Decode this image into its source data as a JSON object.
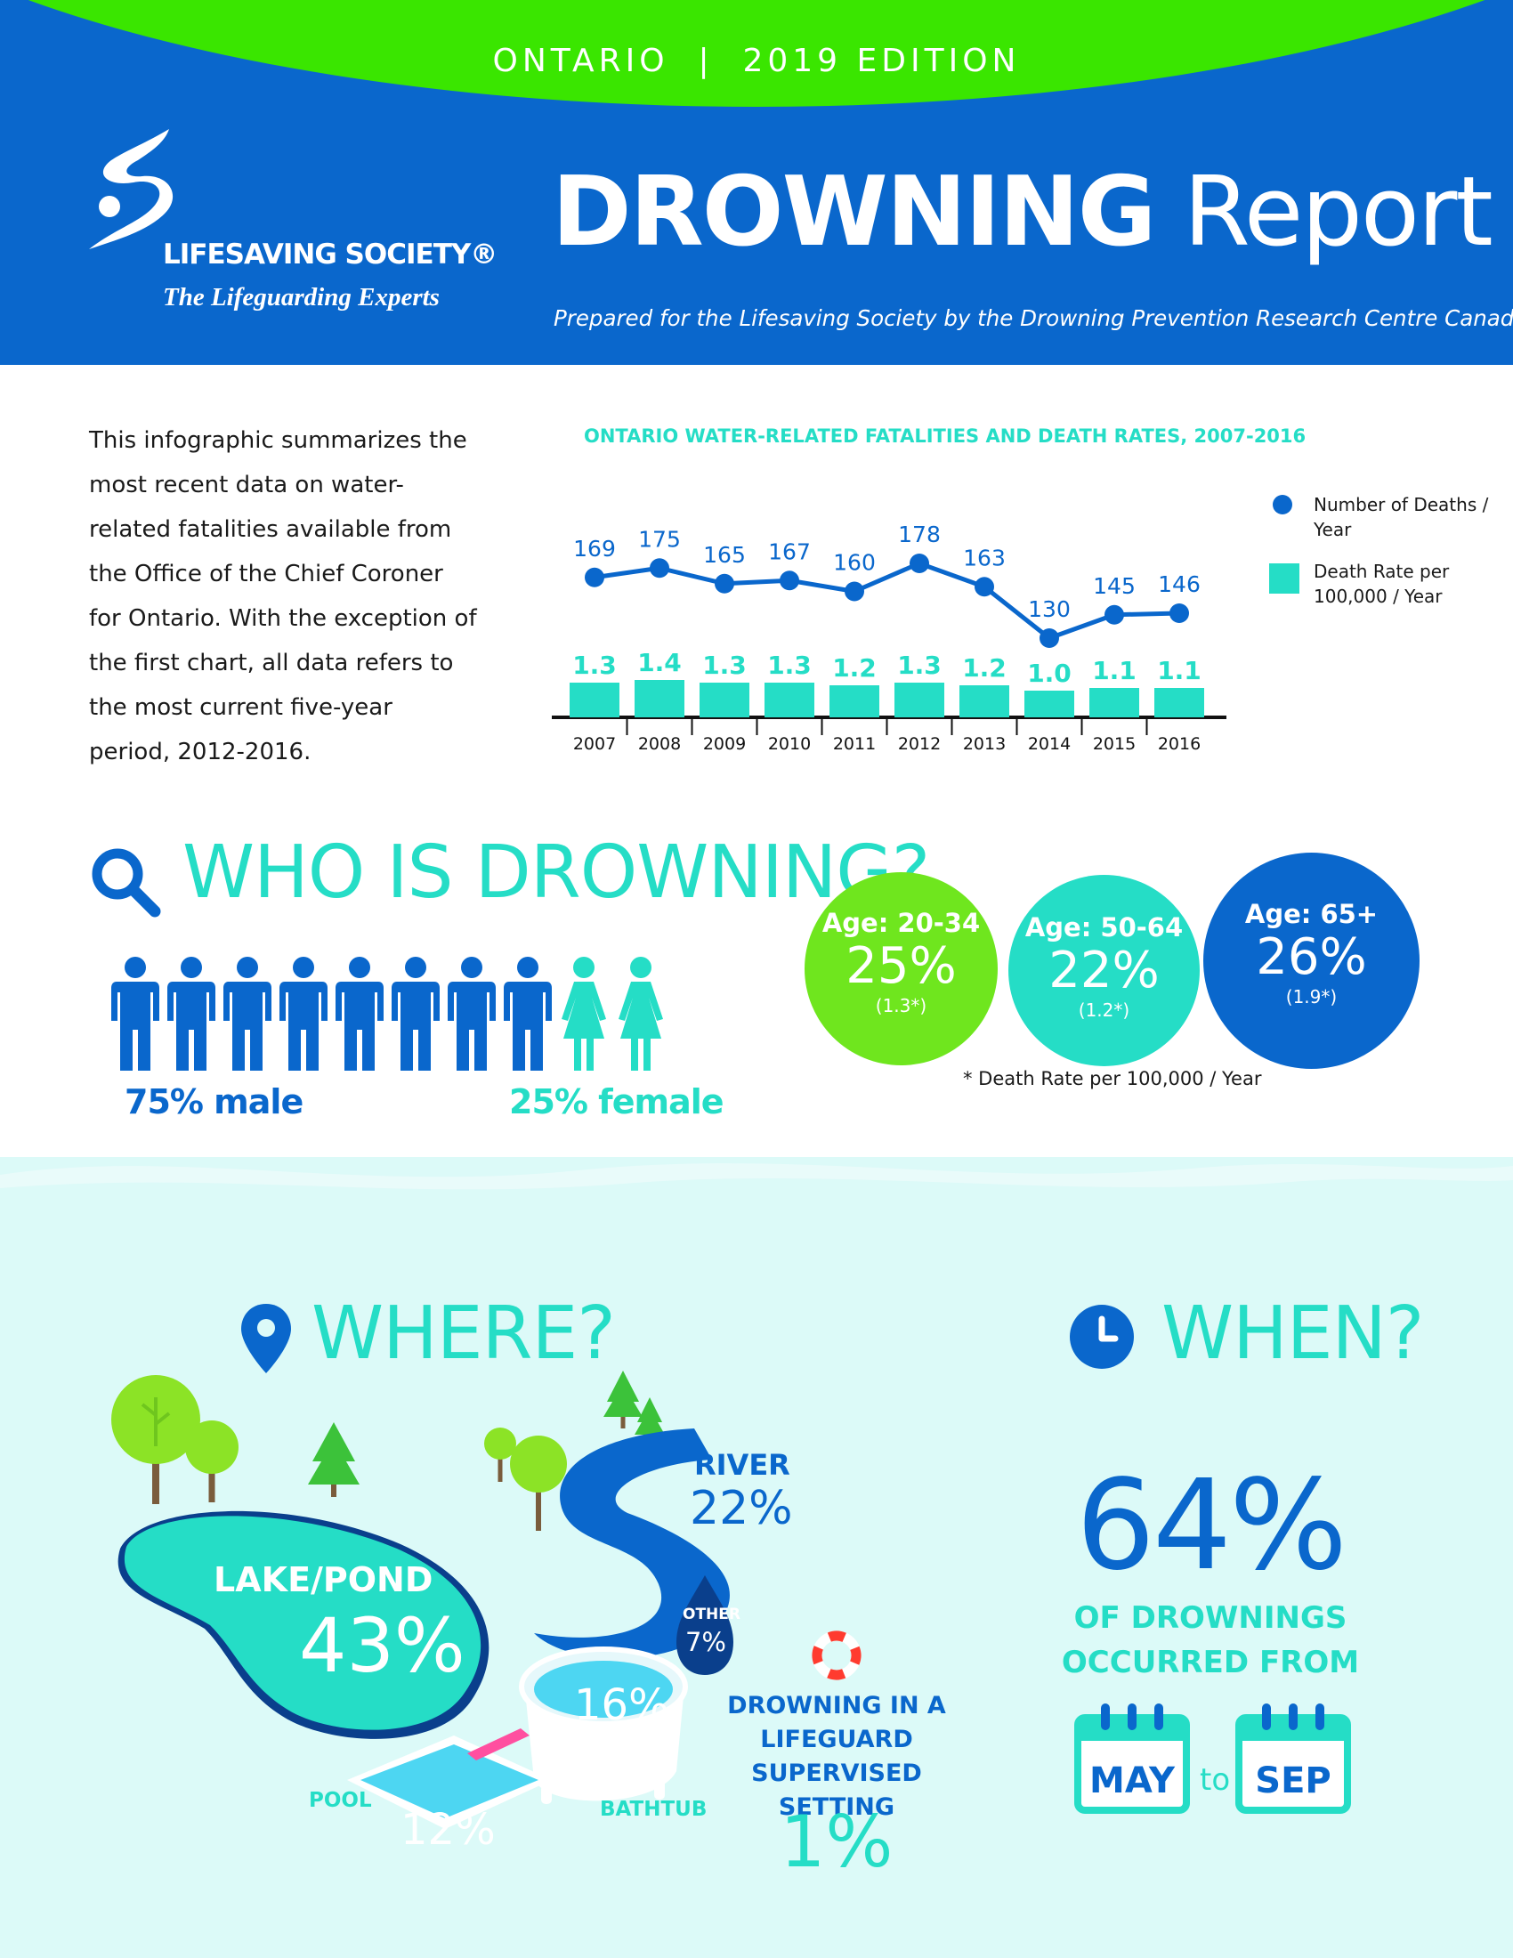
{
  "header": {
    "edition": "ONTARIO  |  2019 EDITION",
    "org_name": "LIFESAVING SOCIETY®",
    "org_tagline": "The Lifeguarding Experts",
    "title_bold": "DROWNING",
    "title_light": "Report",
    "subtitle": "Prepared for the Lifesaving Society by the Drowning Prevention Research Centre Canada",
    "colors": {
      "blue": "#0a67cc",
      "green": "#3ae600",
      "teal": "#25ddc6"
    }
  },
  "intro": {
    "text": "This infographic summarizes the most recent data on water-related fatalities available from the Office of the Chief Coroner for Ontario. With the exception of the first chart, all data refers to the most current five-year period, 2012-2016."
  },
  "chart_data": {
    "type": "line+bar",
    "title": "ONTARIO WATER-RELATED FATALITIES AND DEATH RATES, 2007-2016",
    "categories": [
      "2007",
      "2008",
      "2009",
      "2010",
      "2011",
      "2012",
      "2013",
      "2014",
      "2015",
      "2016"
    ],
    "series": [
      {
        "name": "Number of Deaths / Year",
        "type": "line",
        "color": "#0a67cc",
        "values": [
          169,
          175,
          165,
          167,
          160,
          178,
          163,
          130,
          145,
          146
        ]
      },
      {
        "name": "Death Rate per 100,000 / Year",
        "type": "bar",
        "color": "#25ddc6",
        "values": [
          1.3,
          1.4,
          1.3,
          1.3,
          1.2,
          1.3,
          1.2,
          1.0,
          1.1,
          1.1
        ]
      }
    ],
    "legend": [
      "Number of Deaths / Year",
      "Death Rate per 100,000 / Year"
    ],
    "legend_position": "right"
  },
  "legend": {
    "deaths": "Number of Deaths / Year",
    "rate": "Death Rate per 100,000 / Year"
  },
  "who": {
    "title": "WHO IS DROWNING?",
    "male_count": 8,
    "female_count": 2,
    "male_label": "75% male",
    "female_label": "25% female",
    "ages": [
      {
        "label": "Age: 20-34",
        "pct": "25%",
        "rate": "(1.3*)"
      },
      {
        "label": "Age: 50-64",
        "pct": "22%",
        "rate": "(1.2*)"
      },
      {
        "label": "Age: 65+",
        "pct": "26%",
        "rate": "(1.9*)"
      }
    ],
    "rate_note": "* Death Rate per 100,000 / Year"
  },
  "where": {
    "title": "WHERE?",
    "lake_label": "LAKE/POND",
    "lake_pct": "43%",
    "river_label": "RIVER",
    "river_pct": "22%",
    "other_label": "OTHER",
    "other_pct": "7%",
    "bathtub_label": "BATHTUB",
    "bathtub_pct": "16%",
    "pool_label": "POOL",
    "pool_pct": "12%",
    "guard_text": "DROWNING IN A LIFEGUARD SUPERVISED SETTING",
    "guard_pct": "1%"
  },
  "when": {
    "title": "WHEN?",
    "pct": "64%",
    "text": "OF DROWNINGS OCCURRED FROM",
    "from_month": "MAY",
    "to_word": "to",
    "to_month": "SEP"
  }
}
